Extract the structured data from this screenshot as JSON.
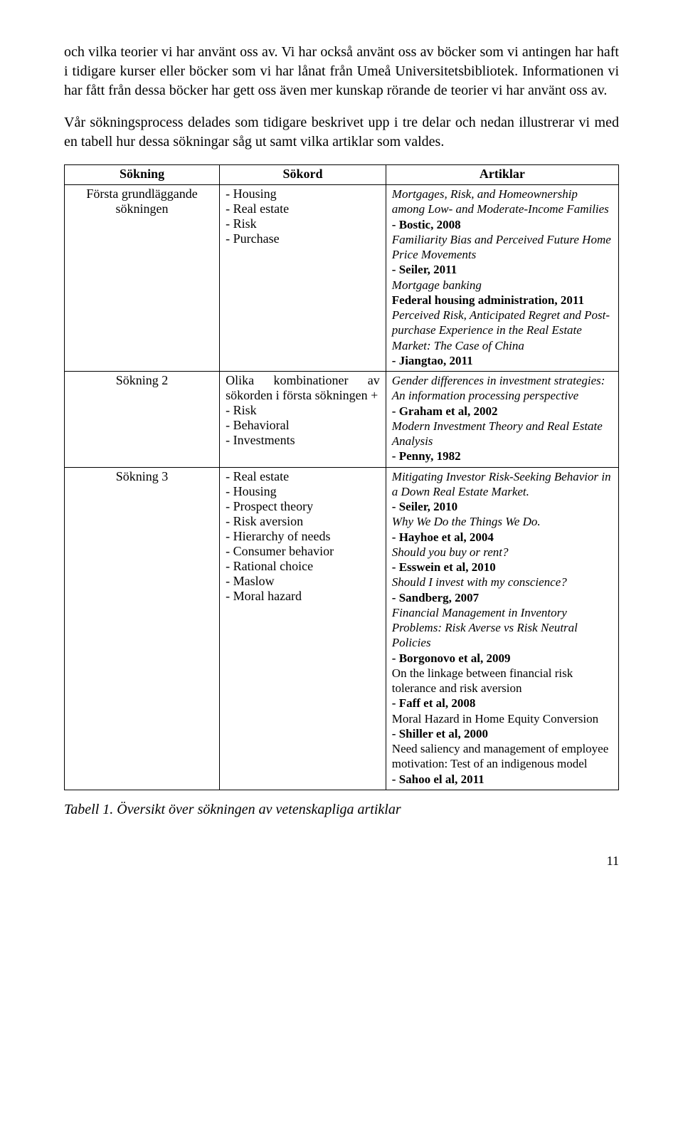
{
  "para1": "och vilka teorier vi har använt oss av. Vi har också använt oss av böcker som vi antingen har haft i tidigare kurser eller böcker som vi har lånat från Umeå Universitetsbibliotek. Informationen vi har fått från dessa böcker har gett oss även mer kunskap rörande de teorier vi har använt oss av.",
  "para2": "Vår sökningsprocess delades som tidigare beskrivet upp i tre delar och nedan illustrerar vi med en tabell hur dessa sökningar såg ut samt vilka artiklar som valdes.",
  "headers": {
    "c1": "Sökning",
    "c2": "Sökord",
    "c3": "Artiklar"
  },
  "rows": [
    {
      "name": "Första grundläggande sökningen",
      "terms": [
        "- Housing",
        "- Real estate",
        "- Risk",
        "- Purchase"
      ],
      "articles": [
        {
          "t": "Mortgages, Risk, and Homeownership among Low- and Moderate-Income Families",
          "i": true
        },
        {
          "t": "- Bostic, 2008",
          "b": true
        },
        {
          "t": "Familiarity Bias and Perceived Future Home Price Movements",
          "i": true
        },
        {
          "t": "- Seiler, 2011",
          "b": true
        },
        {
          "t": "Mortgage banking",
          "i": true
        },
        {
          "t": "Federal housing administration, 2011",
          "b": true
        },
        {
          "t": "Perceived Risk, Anticipated Regret and Post-purchase Experience in the Real Estate Market: The Case of China",
          "i": true
        },
        {
          "t": "- Jiangtao, 2011",
          "b": true
        }
      ]
    },
    {
      "name": "Sökning 2",
      "terms": [
        "Olika kombinationer av sökorden i första sökningen +",
        "- Risk",
        "- Behavioral",
        "- Investments"
      ],
      "articles": [
        {
          "t": "Gender differences in investment strategies: An information processing perspective",
          "i": true
        },
        {
          "t": "- Graham et al, 2002",
          "b": true
        },
        {
          "t": "Modern Investment Theory and Real Estate Analysis",
          "i": true
        },
        {
          "t": "- Penny, 1982",
          "b": true
        }
      ]
    },
    {
      "name": "Sökning 3",
      "terms": [
        "- Real estate",
        "- Housing",
        "- Prospect theory",
        "- Risk aversion",
        "- Hierarchy of needs",
        "- Consumer behavior",
        "- Rational choice",
        "- Maslow",
        "- Moral hazard"
      ],
      "articles": [
        {
          "t": "Mitigating Investor Risk-Seeking Behavior in a Down Real Estate Market.",
          "i": true
        },
        {
          "t": "- Seiler, 2010",
          "b": true
        },
        {
          "t": "Why We Do the Things We Do.",
          "i": true
        },
        {
          "t": " - Hayhoe et al, 2004",
          "b": true
        },
        {
          "t": "Should you buy or rent?",
          "i": true
        },
        {
          "t": "- Esswein et al, 2010",
          "b": true
        },
        {
          "t": "Should I invest with my conscience?",
          "i": true
        },
        {
          "t": "- Sandberg, 2007",
          "b": true
        },
        {
          "t": "Financial Management in Inventory Problems: Risk Averse vs Risk Neutral Policies",
          "i": true
        },
        {
          "t": "- Borgonovo et al, 2009",
          "b": true
        },
        {
          "t": "On the linkage between financial risk tolerance and risk aversion"
        },
        {
          "t": "- Faff et al, 2008",
          "b": true
        },
        {
          "t": "Moral Hazard in Home Equity Conversion"
        },
        {
          "t": "- Shiller et al, 2000",
          "b": true
        },
        {
          "t": "Need saliency and management of employee motivation: Test of an indigenous model"
        },
        {
          "t": "- Sahoo el al, 2011",
          "b": true
        }
      ]
    }
  ],
  "caption": "Tabell 1. Översikt över sökningen av vetenskapliga artiklar",
  "pagenum": "11"
}
